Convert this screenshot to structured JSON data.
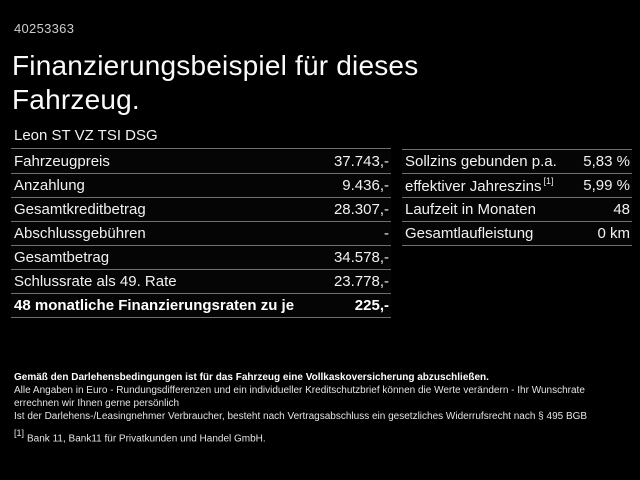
{
  "colors": {
    "background": "#000000",
    "text": "#ffffff",
    "divider": "#6f6f6f"
  },
  "header": {
    "vehicle_id": "40253363",
    "title": "Finanzierungsbeispiel für dieses Fahrzeug.",
    "model": "Leon ST VZ TSI DSG"
  },
  "finance_table": {
    "rows": [
      {
        "label": "Fahrzeugpreis",
        "value": "37.743,-"
      },
      {
        "label": "Anzahlung",
        "value": "9.436,-"
      },
      {
        "label": "Gesamtkreditbetrag",
        "value": "28.307,-"
      },
      {
        "label": "Abschlussgebühren",
        "value": "-"
      },
      {
        "label": "Gesamtbetrag",
        "value": "34.578,-"
      },
      {
        "label": "Schlussrate als 49. Rate",
        "value": "23.778,-"
      },
      {
        "label": "48 monatliche Finanzierungsraten zu je",
        "value": "225,-"
      }
    ]
  },
  "conditions_table": {
    "rows": [
      {
        "label": "Sollzins gebunden p.a.",
        "value": "5,83 %"
      },
      {
        "label": "effektiver Jahreszins",
        "label_sup": "[1]",
        "value": "5,99 %"
      },
      {
        "label": "Laufzeit in Monaten",
        "value": "48"
      },
      {
        "label": "Gesamtlaufleistung",
        "value": "0 km"
      }
    ]
  },
  "legal": {
    "line_bold": "Gemäß den Darlehensbedingungen ist für das Fahrzeug eine Vollkaskoversicherung abzuschließen.",
    "line_2": "Alle Angaben in Euro - Rundungsdifferenzen und ein individueller Kreditschutzbrief können die Werte verändern - Ihr Wunschrate errechnen wir Ihnen gerne persönlich",
    "line_3": "Ist der Darlehens-/Leasingnehmer Verbraucher, besteht nach Vertragsabschluss ein gesetzliches Widerrufsrecht nach § 495 BGB",
    "footnote_marker": "[1]",
    "footnote_text": "Bank 11, Bank11 für Privatkunden und Handel GmbH."
  }
}
